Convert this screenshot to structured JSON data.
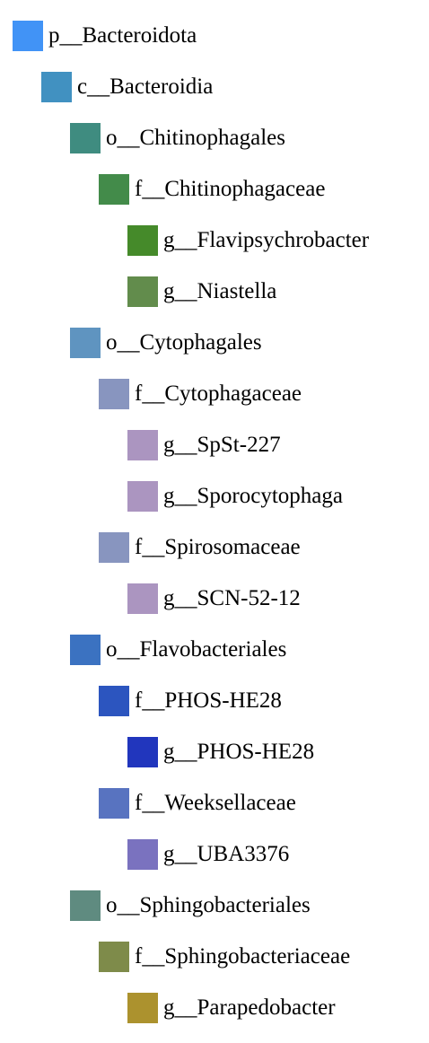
{
  "tree": {
    "nodes": [
      {
        "label": "p__Bacteroidota",
        "depth": 0,
        "color": "#4193f6"
      },
      {
        "label": "c__Bacteroidia",
        "depth": 1,
        "color": "#4191c1"
      },
      {
        "label": "o__Chitinophagales",
        "depth": 2,
        "color": "#3f8c80"
      },
      {
        "label": "f__Chitinophagaceae",
        "depth": 3,
        "color": "#438b4a"
      },
      {
        "label": "g__Flavipsychrobacter",
        "depth": 4,
        "color": "#458a2a"
      },
      {
        "label": "g__Niastella",
        "depth": 4,
        "color": "#628c4c"
      },
      {
        "label": "o__Cytophagales",
        "depth": 2,
        "color": "#5f94c0"
      },
      {
        "label": "f__Cytophagaceae",
        "depth": 3,
        "color": "#8895bf"
      },
      {
        "label": "g__SpSt-227",
        "depth": 4,
        "color": "#ab95c0"
      },
      {
        "label": "g__Sporocytophaga",
        "depth": 4,
        "color": "#ab95c0"
      },
      {
        "label": "f__Spirosomaceae",
        "depth": 3,
        "color": "#8895bf"
      },
      {
        "label": "g__SCN-52-12",
        "depth": 4,
        "color": "#ab95c0"
      },
      {
        "label": "o__Flavobacteriales",
        "depth": 2,
        "color": "#3b72c1"
      },
      {
        "label": "f__PHOS-HE28",
        "depth": 3,
        "color": "#2c55bf"
      },
      {
        "label": "g__PHOS-HE28",
        "depth": 4,
        "color": "#2136bd"
      },
      {
        "label": "f__Weeksellaceae",
        "depth": 3,
        "color": "#5873c0"
      },
      {
        "label": "g__UBA3376",
        "depth": 4,
        "color": "#7a72bf"
      },
      {
        "label": "o__Sphingobacteriales",
        "depth": 2,
        "color": "#5f8b80"
      },
      {
        "label": "f__Sphingobacteriaceae",
        "depth": 3,
        "color": "#7e8b4a"
      },
      {
        "label": "g__Parapedobacter",
        "depth": 4,
        "color": "#ac922e"
      }
    ]
  }
}
